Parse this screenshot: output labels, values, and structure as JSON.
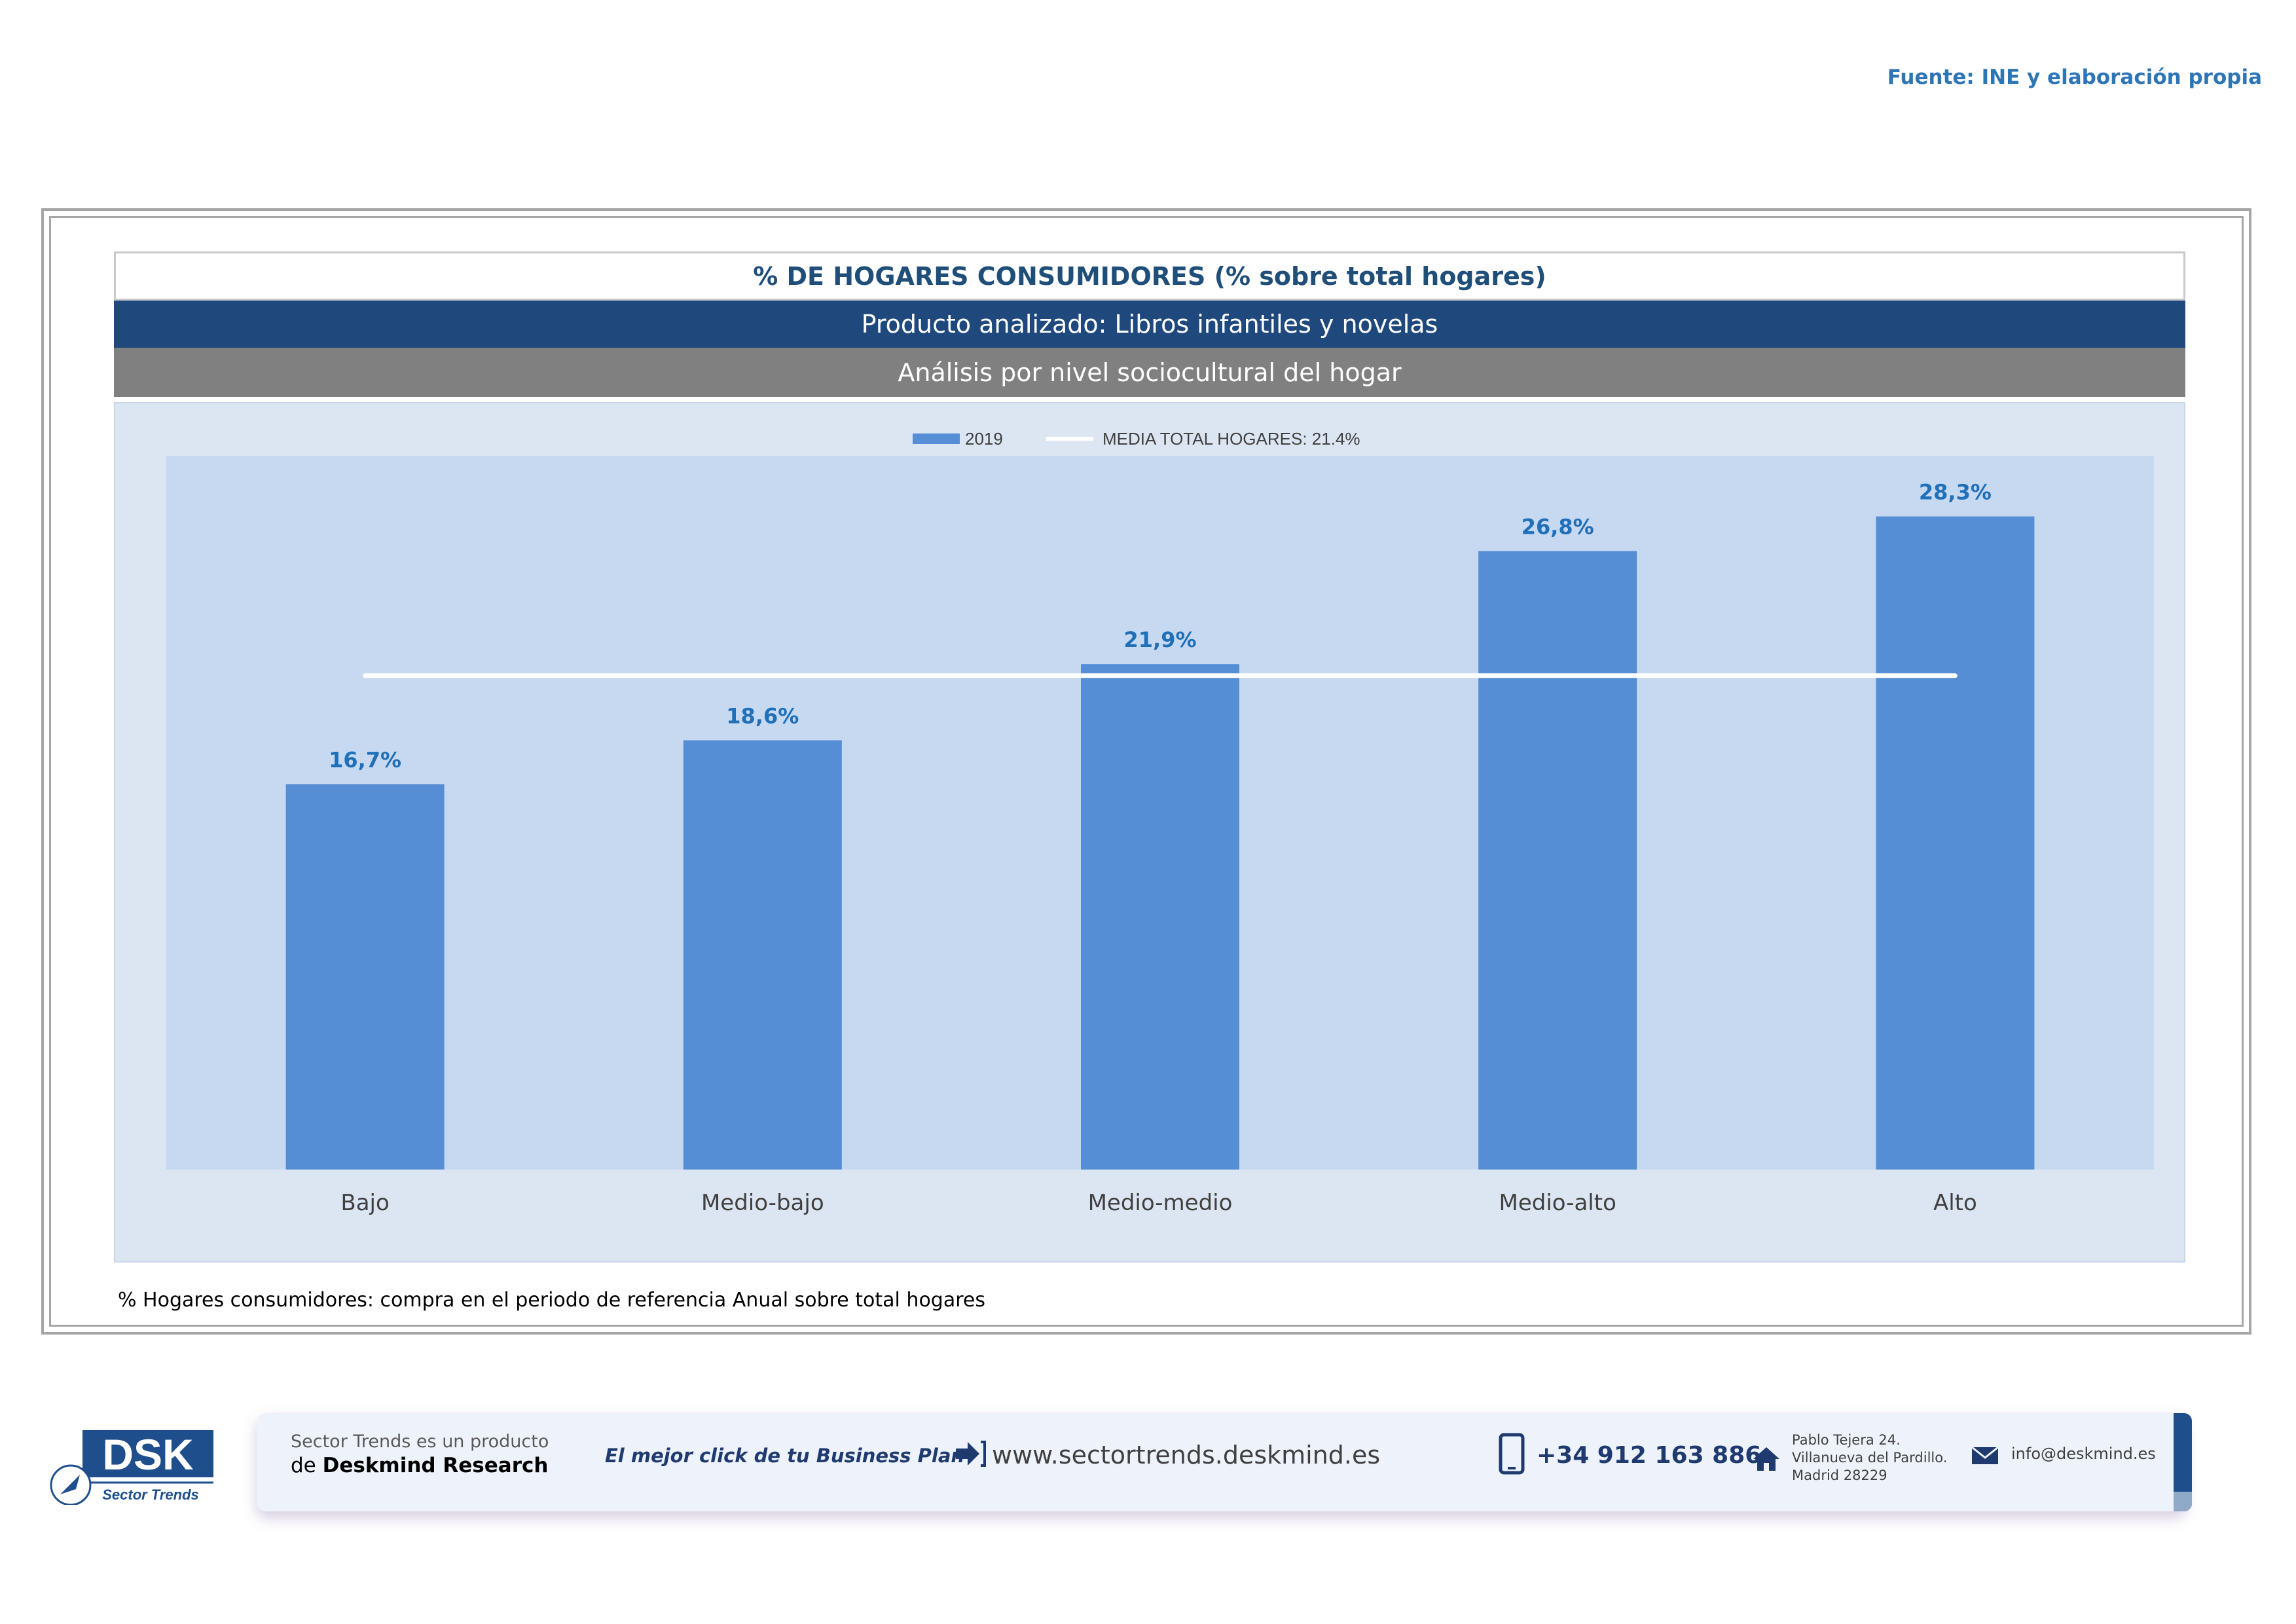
{
  "source": "Fuente: INE y elaboración propia",
  "header": {
    "title": "% DE HOGARES CONSUMIDORES (% sobre total hogares)",
    "product": "Producto analizado: Libros infantiles y novelas",
    "analysis": "Análisis por nivel sociocultural del hogar"
  },
  "legend": {
    "series_label": "2019",
    "media_label": "MEDIA TOTAL  HOGARES:  21.4%"
  },
  "chart_data": {
    "type": "bar",
    "categories": [
      "Bajo",
      "Medio-bajo",
      "Medio-medio",
      "Medio-alto",
      "Alto"
    ],
    "series": [
      {
        "name": "2019",
        "values": [
          16.7,
          18.6,
          21.9,
          26.8,
          28.3
        ]
      }
    ],
    "data_labels": [
      "16,7%",
      "18,6%",
      "21,9%",
      "26,8%",
      "28,3%"
    ],
    "reference_line": {
      "name": "MEDIA TOTAL  HOGARES:  21.4%",
      "value": 21.4
    },
    "ylim": [
      0,
      30
    ],
    "grid": false,
    "legend_position": "top-center",
    "colors": {
      "bar": "#558ed5",
      "label": "#1f6fb9",
      "line": "#ffffff",
      "plot_bg": "#c6d9f1"
    }
  },
  "footnote": "% Hogares consumidores: compra en el periodo de referencia Anual sobre total hogares",
  "banner": {
    "product_line1": "Sector Trends es un producto",
    "product_line2_prefix": "de",
    "product_line2_brand": "Deskmind Research",
    "slogan": "El mejor click de tu Business Plan",
    "website": "www.sectortrends.deskmind.es",
    "phone": "+34 912 163 886",
    "address": [
      "Pablo Tejera 24.",
      "Villanueva del Pardillo.",
      "Madrid 28229"
    ],
    "email": "info@deskmind.es"
  },
  "logo": {
    "letters": "DSK",
    "caption": "Sector Trends"
  }
}
